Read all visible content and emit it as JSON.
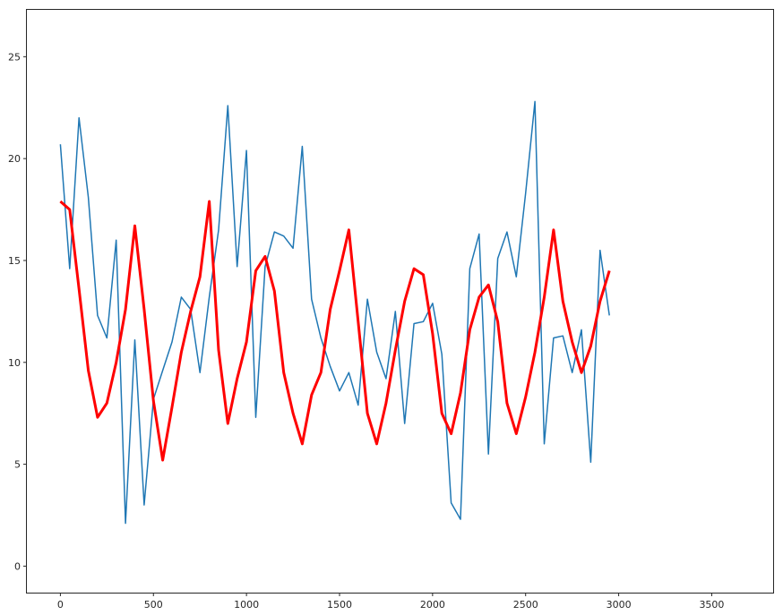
{
  "chart_data": {
    "type": "line",
    "title": "",
    "xlabel": "",
    "ylabel": "",
    "xlim": [
      -180,
      3830
    ],
    "ylim": [
      -1.3,
      27.3
    ],
    "grid": false,
    "xticks": [
      0,
      500,
      1000,
      1500,
      2000,
      2500,
      3000,
      3500
    ],
    "xtick_labels": [
      "0",
      "500",
      "1000",
      "1500",
      "2000",
      "2500",
      "3000",
      "3500"
    ],
    "yticks": [
      0,
      5,
      10,
      15,
      20,
      25
    ],
    "ytick_labels": [
      "0",
      "5",
      "10",
      "15",
      "20",
      "25"
    ],
    "series": [
      {
        "color": "#1f77b4",
        "linewidth": 1.5,
        "points_x_step": 50,
        "points_x_start": 0,
        "values": [
          20.7,
          14.6,
          22.0,
          18.1,
          12.3,
          11.2,
          16.0,
          2.1,
          11.1,
          3.0,
          8.2,
          9.6,
          11.0,
          13.2,
          12.6,
          9.5,
          13.2,
          16.5,
          22.6,
          14.7,
          20.4,
          7.3,
          14.7,
          16.4,
          16.2,
          15.6,
          20.6,
          13.1,
          11.2,
          9.8,
          8.6,
          9.5,
          7.9,
          13.1,
          10.5,
          9.2,
          12.5,
          7.0,
          11.9,
          12.0,
          12.9,
          10.4,
          3.1,
          2.3,
          14.6,
          16.3,
          5.5,
          15.1,
          16.4,
          14.2,
          18.3,
          22.8,
          6.0,
          11.2,
          11.3,
          9.5,
          11.6,
          5.1,
          15.5,
          12.3
        ]
      },
      {
        "color": "#ff0000",
        "linewidth": 3,
        "points_x_step": 50,
        "points_x_start": 0,
        "values": [
          17.9,
          17.5,
          13.6,
          9.6,
          7.3,
          8.0,
          10.0,
          12.6,
          16.7,
          12.6,
          8.1,
          5.2,
          7.8,
          10.5,
          12.5,
          14.2,
          17.9,
          10.6,
          7.0,
          9.2,
          11.0,
          14.5,
          15.2,
          13.5,
          9.5,
          7.5,
          6.0,
          8.4,
          9.5,
          12.6,
          14.5,
          16.5,
          12.0,
          7.5,
          6.0,
          8.0,
          10.6,
          13.0,
          14.6,
          14.3,
          11.4,
          7.5,
          6.5,
          8.5,
          11.6,
          13.2,
          13.8,
          12.0,
          8.0,
          6.5,
          8.3,
          10.5,
          13.2,
          16.5,
          13.0,
          11.0,
          9.5,
          10.8,
          13.0,
          14.5
        ]
      }
    ]
  }
}
